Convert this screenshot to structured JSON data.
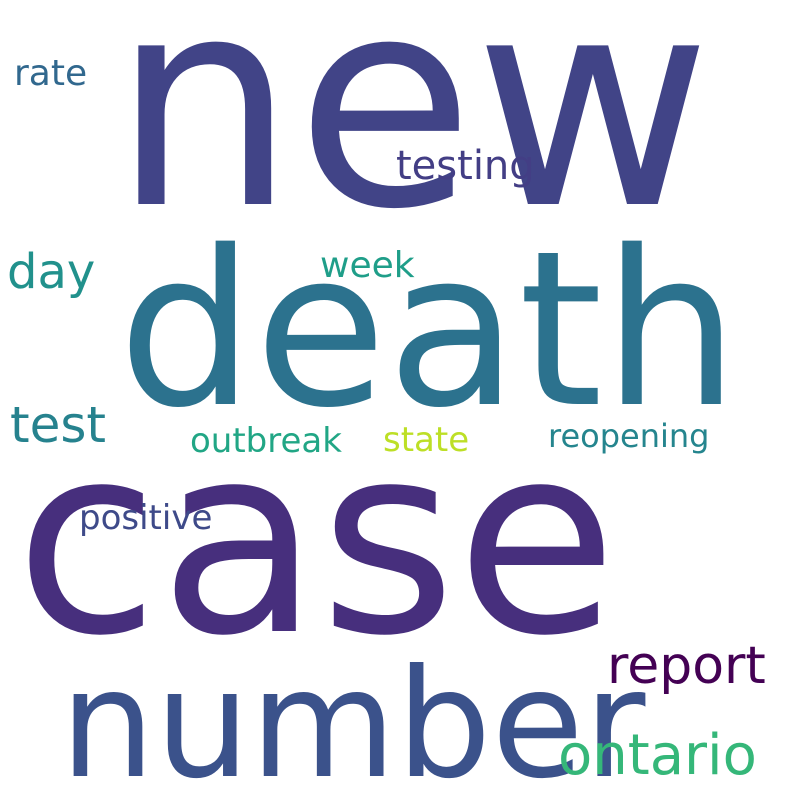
{
  "words": [
    {
      "text": "new",
      "color": "#414487"
    },
    {
      "text": "death",
      "color": "#2c728e"
    },
    {
      "text": "case",
      "color": "#472f7d"
    },
    {
      "text": "number",
      "color": "#3b528b"
    },
    {
      "text": "report",
      "color": "#440154"
    },
    {
      "text": "ontario",
      "color": "#35b779"
    },
    {
      "text": "testing",
      "color": "#433e85"
    },
    {
      "text": "rate",
      "color": "#31688e"
    },
    {
      "text": "day",
      "color": "#21918c"
    },
    {
      "text": "week",
      "color": "#1f9e89"
    },
    {
      "text": "test",
      "color": "#26828e"
    },
    {
      "text": "outbreak",
      "color": "#21a685"
    },
    {
      "text": "state",
      "color": "#bddf26"
    },
    {
      "text": "reopening",
      "color": "#25858e"
    },
    {
      "text": "positive",
      "color": "#3e4a89"
    }
  ]
}
